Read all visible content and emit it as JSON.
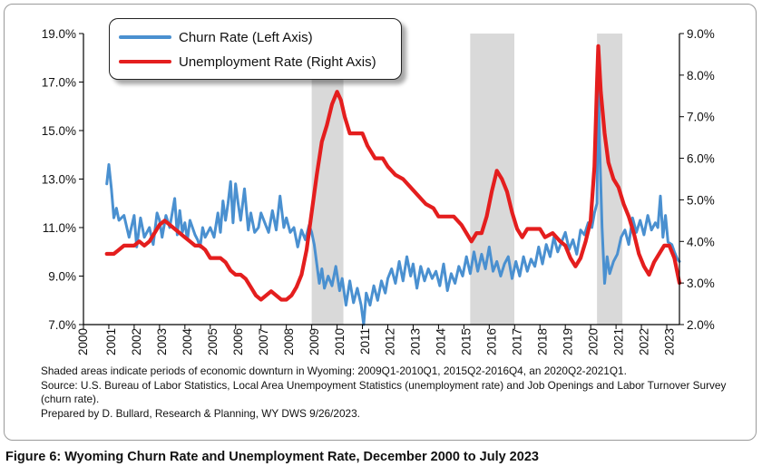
{
  "chart_data": {
    "type": "line",
    "x_start": "2000-12",
    "x_end": "2023-07",
    "x_ticks": [
      "2000",
      "2001",
      "2002",
      "2003",
      "2004",
      "2005",
      "2006",
      "2007",
      "2008",
      "2009",
      "2010",
      "2011",
      "2012",
      "2013",
      "2014",
      "2015",
      "2016",
      "2017",
      "2018",
      "2019",
      "2020",
      "2021",
      "2022",
      "2023"
    ],
    "y_left": {
      "ticks": [
        "7.0%",
        "9.0%",
        "11.0%",
        "13.0%",
        "15.0%",
        "17.0%",
        "19.0%"
      ],
      "ylim": [
        7.0,
        19.0
      ],
      "unit": "%"
    },
    "y_right": {
      "ticks": [
        "2.0%",
        "3.0%",
        "4.0%",
        "5.0%",
        "6.0%",
        "7.0%",
        "8.0%",
        "9.0%"
      ],
      "ylim": [
        2.0,
        9.0
      ],
      "unit": "%"
    },
    "shaded_periods": [
      {
        "start": 2009.0,
        "end": 2010.25
      },
      {
        "start": 2015.25,
        "end": 2016.99
      },
      {
        "start": 2020.25,
        "end": 2021.25
      }
    ],
    "legend_position": "top-left",
    "series": [
      {
        "name": "Churn Rate (Left Axis)",
        "axis": "left",
        "color": "#4a90d0",
        "points": [
          [
            2000.92,
            12.8
          ],
          [
            2001.0,
            13.6
          ],
          [
            2001.1,
            12.6
          ],
          [
            2001.2,
            11.4
          ],
          [
            2001.3,
            11.8
          ],
          [
            2001.4,
            11.3
          ],
          [
            2001.6,
            11.5
          ],
          [
            2001.8,
            10.6
          ],
          [
            2002.0,
            11.5
          ],
          [
            2002.1,
            10.2
          ],
          [
            2002.25,
            11.4
          ],
          [
            2002.4,
            10.6
          ],
          [
            2002.6,
            11.0
          ],
          [
            2002.75,
            10.3
          ],
          [
            2002.9,
            11.6
          ],
          [
            2003.0,
            11.3
          ],
          [
            2003.1,
            10.6
          ],
          [
            2003.25,
            11.5
          ],
          [
            2003.4,
            11.0
          ],
          [
            2003.6,
            12.2
          ],
          [
            2003.7,
            10.7
          ],
          [
            2003.8,
            11.7
          ],
          [
            2003.9,
            10.8
          ],
          [
            2004.0,
            11.2
          ],
          [
            2004.1,
            10.5
          ],
          [
            2004.2,
            11.3
          ],
          [
            2004.3,
            11.0
          ],
          [
            2004.4,
            10.7
          ],
          [
            2004.5,
            10.5
          ],
          [
            2004.6,
            10.2
          ],
          [
            2004.7,
            11.0
          ],
          [
            2004.8,
            10.6
          ],
          [
            2005.0,
            11.0
          ],
          [
            2005.15,
            10.6
          ],
          [
            2005.3,
            11.6
          ],
          [
            2005.4,
            10.8
          ],
          [
            2005.5,
            12.1
          ],
          [
            2005.6,
            11.3
          ],
          [
            2005.7,
            12.0
          ],
          [
            2005.8,
            12.9
          ],
          [
            2005.9,
            11.2
          ],
          [
            2006.0,
            12.8
          ],
          [
            2006.1,
            12.0
          ],
          [
            2006.2,
            11.3
          ],
          [
            2006.35,
            12.6
          ],
          [
            2006.5,
            10.9
          ],
          [
            2006.6,
            11.6
          ],
          [
            2006.75,
            10.8
          ],
          [
            2006.9,
            11.0
          ],
          [
            2007.0,
            11.6
          ],
          [
            2007.15,
            11.2
          ],
          [
            2007.3,
            10.8
          ],
          [
            2007.45,
            11.7
          ],
          [
            2007.6,
            10.9
          ],
          [
            2007.75,
            12.3
          ],
          [
            2007.9,
            11.0
          ],
          [
            2008.0,
            11.4
          ],
          [
            2008.15,
            10.8
          ],
          [
            2008.3,
            11.0
          ],
          [
            2008.45,
            10.2
          ],
          [
            2008.6,
            10.9
          ],
          [
            2008.75,
            10.5
          ],
          [
            2008.9,
            11.1
          ],
          [
            2009.0,
            10.8
          ],
          [
            2009.1,
            10.3
          ],
          [
            2009.2,
            9.5
          ],
          [
            2009.3,
            8.7
          ],
          [
            2009.4,
            9.3
          ],
          [
            2009.5,
            8.5
          ],
          [
            2009.65,
            9.0
          ],
          [
            2009.8,
            8.6
          ],
          [
            2009.95,
            9.4
          ],
          [
            2010.1,
            8.4
          ],
          [
            2010.2,
            8.9
          ],
          [
            2010.35,
            7.8
          ],
          [
            2010.5,
            8.8
          ],
          [
            2010.65,
            7.9
          ],
          [
            2010.8,
            8.5
          ],
          [
            2010.95,
            7.8
          ],
          [
            2011.05,
            7.0
          ],
          [
            2011.15,
            8.3
          ],
          [
            2011.3,
            7.8
          ],
          [
            2011.45,
            8.6
          ],
          [
            2011.6,
            8.0
          ],
          [
            2011.75,
            8.8
          ],
          [
            2011.9,
            8.3
          ],
          [
            2012.0,
            8.9
          ],
          [
            2012.15,
            9.3
          ],
          [
            2012.3,
            8.7
          ],
          [
            2012.45,
            9.6
          ],
          [
            2012.6,
            8.8
          ],
          [
            2012.75,
            9.8
          ],
          [
            2012.9,
            9.0
          ],
          [
            2013.0,
            9.5
          ],
          [
            2013.15,
            8.5
          ],
          [
            2013.3,
            9.4
          ],
          [
            2013.45,
            8.8
          ],
          [
            2013.6,
            9.3
          ],
          [
            2013.75,
            8.9
          ],
          [
            2013.9,
            9.2
          ],
          [
            2014.05,
            8.6
          ],
          [
            2014.2,
            9.5
          ],
          [
            2014.35,
            8.4
          ],
          [
            2014.5,
            9.1
          ],
          [
            2014.65,
            8.7
          ],
          [
            2014.8,
            9.4
          ],
          [
            2014.95,
            9.0
          ],
          [
            2015.1,
            9.8
          ],
          [
            2015.25,
            9.1
          ],
          [
            2015.4,
            10.0
          ],
          [
            2015.55,
            9.2
          ],
          [
            2015.7,
            9.9
          ],
          [
            2015.85,
            9.3
          ],
          [
            2016.0,
            10.2
          ],
          [
            2016.15,
            9.2
          ],
          [
            2016.3,
            9.6
          ],
          [
            2016.45,
            9.0
          ],
          [
            2016.6,
            9.5
          ],
          [
            2016.75,
            9.8
          ],
          [
            2016.9,
            8.9
          ],
          [
            2017.05,
            9.6
          ],
          [
            2017.2,
            9.0
          ],
          [
            2017.35,
            9.8
          ],
          [
            2017.5,
            9.2
          ],
          [
            2017.65,
            9.7
          ],
          [
            2017.8,
            9.4
          ],
          [
            2017.95,
            10.2
          ],
          [
            2018.1,
            9.5
          ],
          [
            2018.25,
            10.3
          ],
          [
            2018.4,
            9.8
          ],
          [
            2018.55,
            10.6
          ],
          [
            2018.7,
            10.0
          ],
          [
            2018.85,
            10.4
          ],
          [
            2019.0,
            10.8
          ],
          [
            2019.15,
            10.1
          ],
          [
            2019.3,
            10.5
          ],
          [
            2019.45,
            9.9
          ],
          [
            2019.6,
            10.9
          ],
          [
            2019.75,
            10.7
          ],
          [
            2019.9,
            11.2
          ],
          [
            2020.05,
            11.0
          ],
          [
            2020.15,
            11.6
          ],
          [
            2020.25,
            12.0
          ],
          [
            2020.3,
            17.7
          ],
          [
            2020.35,
            14.5
          ],
          [
            2020.45,
            11.0
          ],
          [
            2020.55,
            8.7
          ],
          [
            2020.65,
            9.8
          ],
          [
            2020.75,
            9.1
          ],
          [
            2020.9,
            9.6
          ],
          [
            2021.05,
            9.9
          ],
          [
            2021.2,
            10.6
          ],
          [
            2021.35,
            10.9
          ],
          [
            2021.5,
            10.3
          ],
          [
            2021.65,
            11.4
          ],
          [
            2021.8,
            10.8
          ],
          [
            2021.95,
            11.3
          ],
          [
            2022.1,
            10.7
          ],
          [
            2022.25,
            11.5
          ],
          [
            2022.4,
            10.9
          ],
          [
            2022.55,
            11.2
          ],
          [
            2022.65,
            11.0
          ],
          [
            2022.75,
            12.3
          ],
          [
            2022.85,
            10.6
          ],
          [
            2022.95,
            11.5
          ],
          [
            2023.05,
            10.4
          ],
          [
            2023.2,
            10.3
          ],
          [
            2023.3,
            10.0
          ],
          [
            2023.42,
            9.7
          ],
          [
            2023.5,
            9.6
          ]
        ]
      },
      {
        "name": "Unemployment Rate (Right Axis)",
        "axis": "right",
        "color": "#e41e1e",
        "points": [
          [
            2000.92,
            3.7
          ],
          [
            2001.2,
            3.7
          ],
          [
            2001.4,
            3.8
          ],
          [
            2001.6,
            3.9
          ],
          [
            2002.0,
            3.9
          ],
          [
            2002.2,
            4.0
          ],
          [
            2002.4,
            3.9
          ],
          [
            2002.6,
            4.0
          ],
          [
            2002.8,
            4.2
          ],
          [
            2003.0,
            4.4
          ],
          [
            2003.2,
            4.5
          ],
          [
            2003.4,
            4.4
          ],
          [
            2003.6,
            4.3
          ],
          [
            2003.8,
            4.2
          ],
          [
            2004.0,
            4.1
          ],
          [
            2004.2,
            4.0
          ],
          [
            2004.4,
            3.9
          ],
          [
            2004.6,
            3.9
          ],
          [
            2004.8,
            3.8
          ],
          [
            2005.0,
            3.6
          ],
          [
            2005.2,
            3.6
          ],
          [
            2005.4,
            3.6
          ],
          [
            2005.6,
            3.5
          ],
          [
            2005.8,
            3.3
          ],
          [
            2006.0,
            3.2
          ],
          [
            2006.2,
            3.2
          ],
          [
            2006.4,
            3.1
          ],
          [
            2006.6,
            2.9
          ],
          [
            2006.8,
            2.7
          ],
          [
            2007.0,
            2.6
          ],
          [
            2007.2,
            2.7
          ],
          [
            2007.4,
            2.8
          ],
          [
            2007.6,
            2.7
          ],
          [
            2007.8,
            2.6
          ],
          [
            2008.0,
            2.6
          ],
          [
            2008.2,
            2.7
          ],
          [
            2008.4,
            2.9
          ],
          [
            2008.6,
            3.2
          ],
          [
            2008.8,
            3.8
          ],
          [
            2009.0,
            4.7
          ],
          [
            2009.2,
            5.6
          ],
          [
            2009.4,
            6.4
          ],
          [
            2009.6,
            6.8
          ],
          [
            2009.8,
            7.3
          ],
          [
            2010.0,
            7.6
          ],
          [
            2010.15,
            7.4
          ],
          [
            2010.3,
            7.0
          ],
          [
            2010.5,
            6.6
          ],
          [
            2010.8,
            6.6
          ],
          [
            2011.0,
            6.6
          ],
          [
            2011.2,
            6.3
          ],
          [
            2011.5,
            6.0
          ],
          [
            2011.8,
            6.0
          ],
          [
            2012.0,
            5.8
          ],
          [
            2012.3,
            5.6
          ],
          [
            2012.6,
            5.5
          ],
          [
            2012.9,
            5.3
          ],
          [
            2013.2,
            5.1
          ],
          [
            2013.5,
            4.9
          ],
          [
            2013.8,
            4.8
          ],
          [
            2014.0,
            4.6
          ],
          [
            2014.3,
            4.6
          ],
          [
            2014.6,
            4.6
          ],
          [
            2014.9,
            4.4
          ],
          [
            2015.1,
            4.2
          ],
          [
            2015.3,
            4.0
          ],
          [
            2015.5,
            4.2
          ],
          [
            2015.7,
            4.2
          ],
          [
            2015.9,
            4.6
          ],
          [
            2016.1,
            5.2
          ],
          [
            2016.3,
            5.7
          ],
          [
            2016.5,
            5.5
          ],
          [
            2016.7,
            5.2
          ],
          [
            2016.9,
            4.7
          ],
          [
            2017.1,
            4.3
          ],
          [
            2017.3,
            4.1
          ],
          [
            2017.5,
            4.3
          ],
          [
            2017.8,
            4.3
          ],
          [
            2018.0,
            4.3
          ],
          [
            2018.2,
            4.1
          ],
          [
            2018.5,
            4.2
          ],
          [
            2018.8,
            4.0
          ],
          [
            2019.0,
            3.9
          ],
          [
            2019.2,
            3.6
          ],
          [
            2019.4,
            3.4
          ],
          [
            2019.6,
            3.6
          ],
          [
            2019.8,
            4.0
          ],
          [
            2020.0,
            4.5
          ],
          [
            2020.15,
            5.8
          ],
          [
            2020.25,
            7.8
          ],
          [
            2020.3,
            8.7
          ],
          [
            2020.4,
            7.6
          ],
          [
            2020.55,
            6.6
          ],
          [
            2020.7,
            5.9
          ],
          [
            2020.9,
            5.5
          ],
          [
            2021.1,
            5.3
          ],
          [
            2021.3,
            4.9
          ],
          [
            2021.5,
            4.6
          ],
          [
            2021.7,
            4.2
          ],
          [
            2021.9,
            3.7
          ],
          [
            2022.1,
            3.4
          ],
          [
            2022.3,
            3.2
          ],
          [
            2022.5,
            3.5
          ],
          [
            2022.7,
            3.7
          ],
          [
            2022.9,
            3.9
          ],
          [
            2023.1,
            3.9
          ],
          [
            2023.3,
            3.6
          ],
          [
            2023.5,
            3.0
          ]
        ]
      }
    ]
  },
  "notes": [
    "Shaded areas indicate periods of economic downturn in Wyoming: 2009Q1-2010Q1, 2015Q2-2016Q4, an 2020Q2-2021Q1.",
    "Source: U.S. Bureau of Labor Statistics, Local Area Unempoyment Statistics (unemployment rate) and Job Openings and Labor Turnover Survey (churn rate).",
    "Prepared by D. Bullard, Research & Planning, WY DWS 9/26/2023."
  ],
  "figure_caption": "Figure 6: Wyoming Churn Rate and Unemployment Rate, December 2000 to July 2023"
}
